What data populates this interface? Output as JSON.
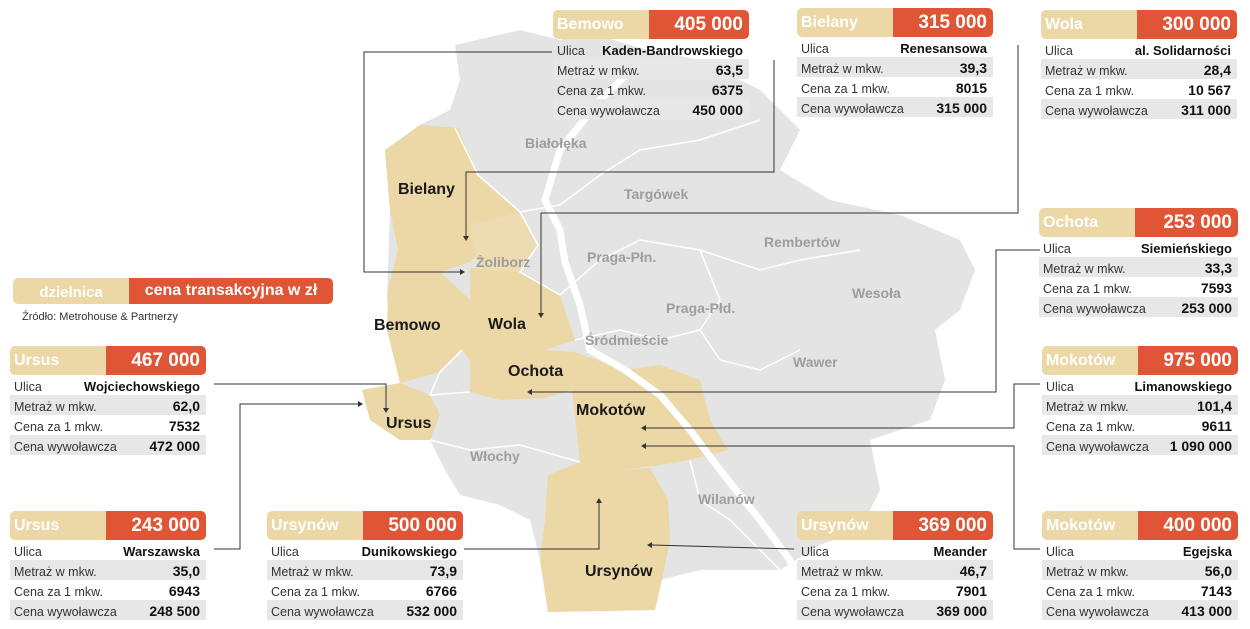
{
  "colors": {
    "highlight": "#ecd7a6",
    "price": "#df5535",
    "city": "#e4e4e4",
    "river": "#ffffff"
  },
  "legend": {
    "district": "dzielnica",
    "price": "cena transakcyjna w zł"
  },
  "source": "Źródło: Metrohouse & Partnerzy",
  "row_labels": {
    "street": "Ulica",
    "area": "Metraż w mkw.",
    "price_per_m2": "Cena za 1 mkw.",
    "asking": "Cena wywoławcza"
  },
  "map_labels": {
    "highlighted": [
      "Bielany",
      "Bemowo",
      "Wola",
      "Ochota",
      "Ursus",
      "Mokotów",
      "Ursynów"
    ],
    "other": [
      "Białołęka",
      "Targówek",
      "Żoliborz",
      "Praga-Płn.",
      "Rembertów",
      "Wesoła",
      "Praga-Płd.",
      "Śródmieście",
      "Wawer",
      "Włochy",
      "Wilanów"
    ]
  },
  "cards": [
    {
      "district": "Bemowo",
      "price": "405 000",
      "street": "Kaden-Bandrowskiego",
      "area": "63,5",
      "price_per_m2": "6375",
      "asking": "450 000"
    },
    {
      "district": "Bielany",
      "price": "315 000",
      "street": "Renesansowa",
      "area": "39,3",
      "price_per_m2": "8015",
      "asking": "315 000"
    },
    {
      "district": "Wola",
      "price": "300 000",
      "street": "al. Solidarności",
      "area": "28,4",
      "price_per_m2": "10 567",
      "asking": "311 000"
    },
    {
      "district": "Ochota",
      "price": "253 000",
      "street": "Siemieńskiego",
      "area": "33,3",
      "price_per_m2": "7593",
      "asking": "253 000"
    },
    {
      "district": "Ursus",
      "price": "467 000",
      "street": "Wojciechowskiego",
      "area": "62,0",
      "price_per_m2": "7532",
      "asking": "472 000"
    },
    {
      "district": "Mokotów",
      "price": "975 000",
      "street": "Limanowskiego",
      "area": "101,4",
      "price_per_m2": "9611",
      "asking": "1 090 000"
    },
    {
      "district": "Ursus",
      "price": "243 000",
      "street": "Warszawska",
      "area": "35,0",
      "price_per_m2": "6943",
      "asking": "248 500"
    },
    {
      "district": "Ursynów",
      "price": "500 000",
      "street": "Dunikowskiego",
      "area": "73,9",
      "price_per_m2": "6766",
      "asking": "532 000"
    },
    {
      "district": "Ursynów",
      "price": "369 000",
      "street": "Meander",
      "area": "46,7",
      "price_per_m2": "7901",
      "asking": "369 000"
    },
    {
      "district": "Mokotów",
      "price": "400 000",
      "street": "Egejska",
      "area": "56,0",
      "price_per_m2": "7143",
      "asking": "413 000"
    }
  ]
}
